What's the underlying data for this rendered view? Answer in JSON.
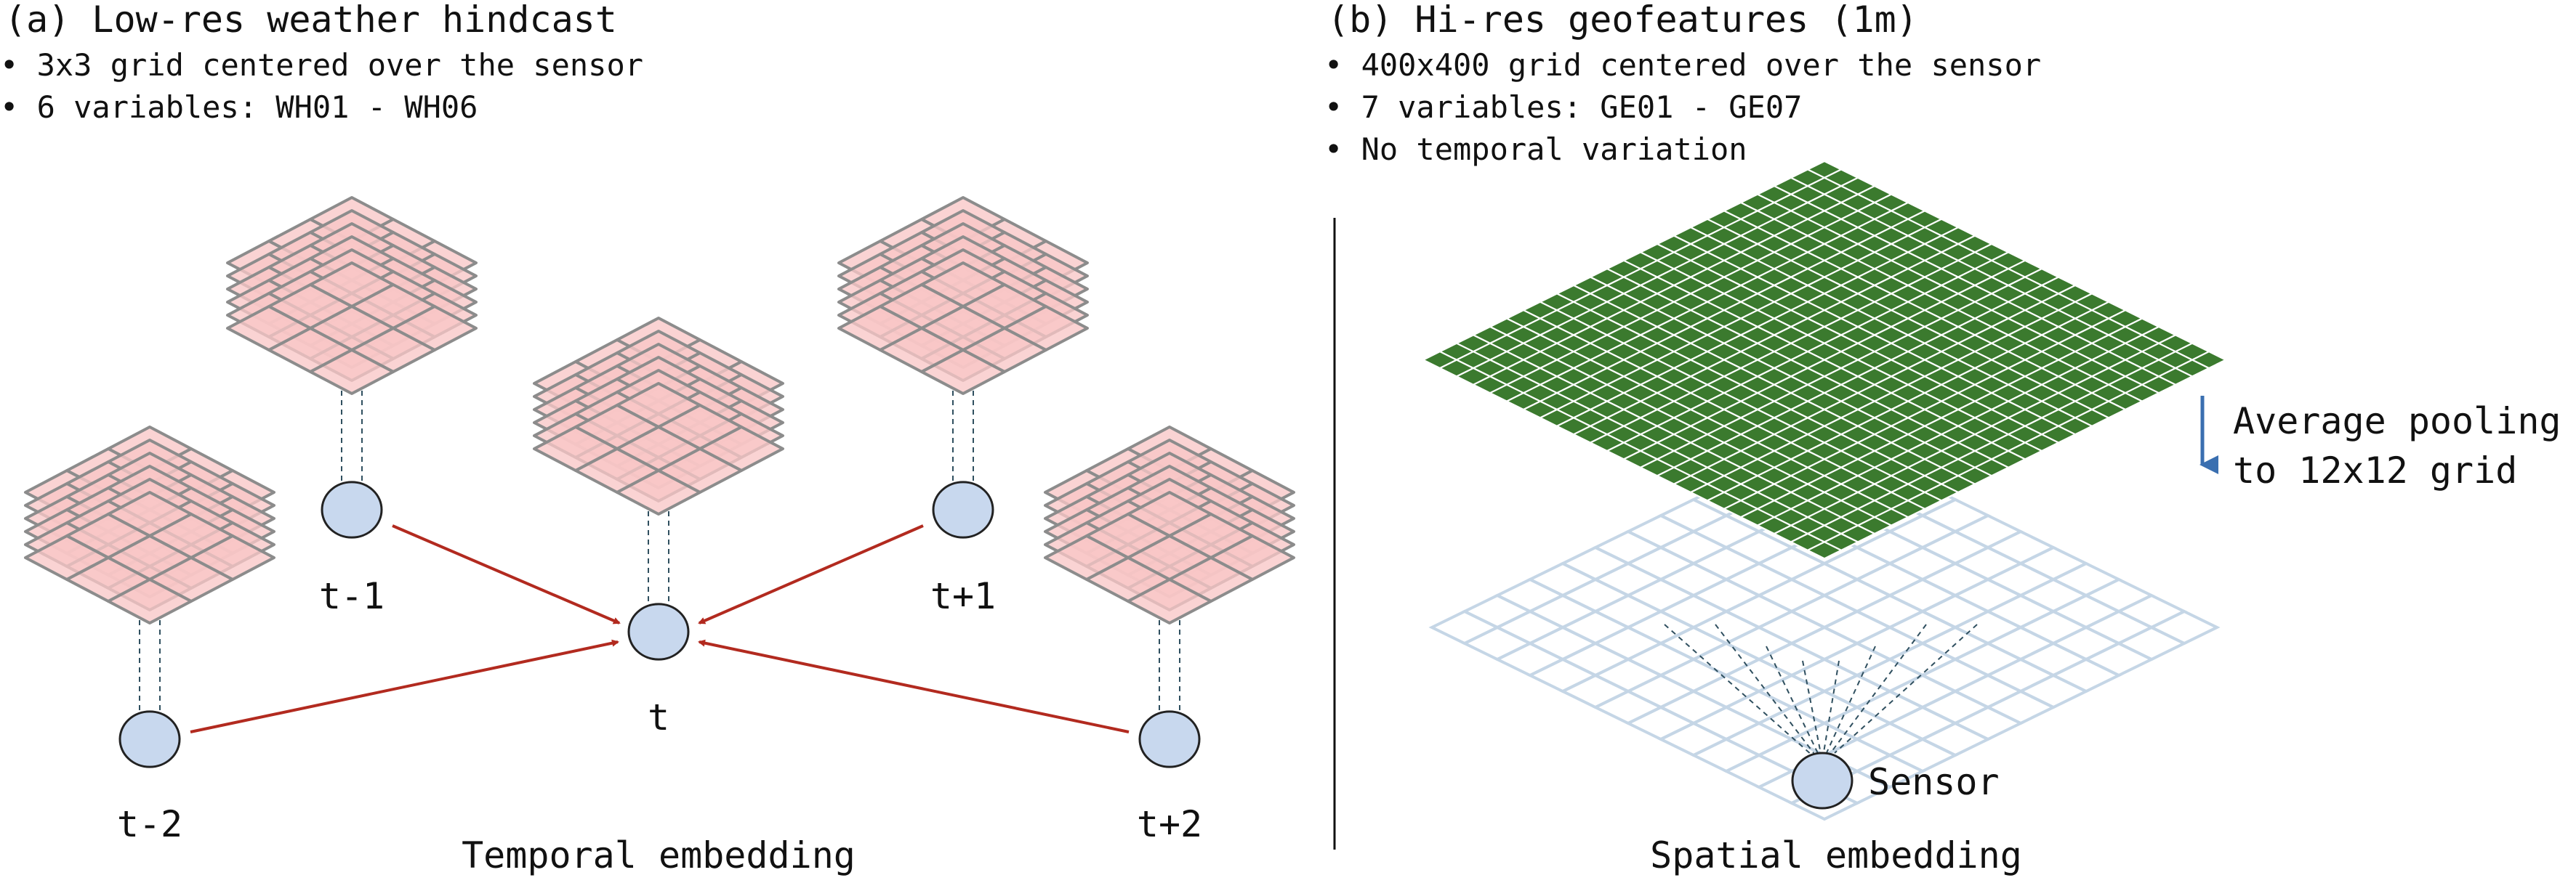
{
  "panel_a": {
    "title": "(a) Low-res weather hindcast",
    "bullets": [
      "3x3 grid centered over the sensor",
      "6 variables: WH01 - WH06"
    ],
    "time_labels": {
      "t_minus_2": "t-2",
      "t_minus_1": "t-1",
      "t": "t",
      "t_plus_1": "t+1",
      "t_plus_2": "t+2"
    },
    "caption": "Temporal embedding"
  },
  "panel_b": {
    "title": "(b) Hi-res geofeatures (1m)",
    "bullets": [
      "400x400 grid centered over the sensor",
      "7 variables: GE01 - GE07",
      "No temporal variation"
    ],
    "pooling_label_line1": "Average pooling",
    "pooling_label_line2": "to 12x12 grid",
    "sensor_label": "Sensor",
    "caption": "Spatial embedding"
  },
  "colors": {
    "stack_fill": "#f9c6c6",
    "stack_stroke": "#8c8c8c",
    "node_fill": "#c8d8ee",
    "arrow": "#b22a1f",
    "green_cell": "#3b7a2e",
    "pool_grid": "#c5d6e6",
    "pool_arrow": "#3a6fb0",
    "connector": "#2f4f5f"
  }
}
